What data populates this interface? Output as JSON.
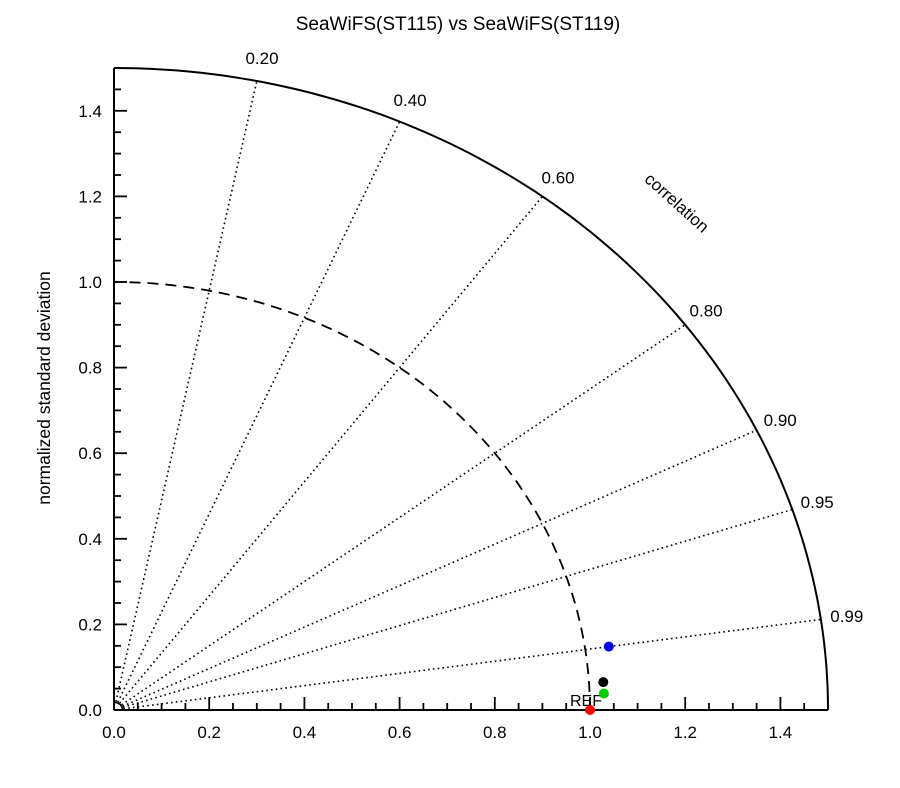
{
  "title": "SeaWiFS(ST115) vs SeaWiFS(ST119)",
  "chart_data": {
    "type": "scatter",
    "subtype": "taylor-diagram",
    "title": "SeaWiFS(ST115) vs SeaWiFS(ST119)",
    "radial_label": "normalized standard deviation",
    "angular_label": "correlation",
    "radial_range": [
      0,
      1.5
    ],
    "radial_major_tick_step": 0.2,
    "radial_minor_tick_step": 0.05,
    "radial_tick_labels": [
      "0.0",
      "0.2",
      "0.4",
      "0.6",
      "0.8",
      "1.0",
      "1.2",
      "1.4"
    ],
    "outer_arc_radius": 1.5,
    "reference_arc_radius": 1.0,
    "reference_arc_style": "dashed",
    "grid": "dotted correlation rays from origin",
    "legend_position": "none",
    "correlation_rays": [
      {
        "value": 0.2,
        "label": "0.20"
      },
      {
        "value": 0.4,
        "label": "0.40"
      },
      {
        "value": 0.6,
        "label": "0.60"
      },
      {
        "value": 0.8,
        "label": "0.80"
      },
      {
        "value": 0.9,
        "label": "0.90"
      },
      {
        "value": 0.95,
        "label": "0.95"
      },
      {
        "value": 0.99,
        "label": "0.99"
      }
    ],
    "reference_point_label": "REF",
    "points": [
      {
        "name": "reference-red",
        "color": "#ff0000",
        "sigma": 1.0,
        "correlation": 1.0
      },
      {
        "name": "series-green",
        "color": "#00cc00",
        "sigma": 1.03,
        "correlation": 0.9993
      },
      {
        "name": "series-black",
        "color": "#000000",
        "sigma": 1.03,
        "correlation": 0.998
      },
      {
        "name": "series-blue",
        "color": "#0000ee",
        "sigma": 1.05,
        "correlation": 0.99
      }
    ]
  }
}
